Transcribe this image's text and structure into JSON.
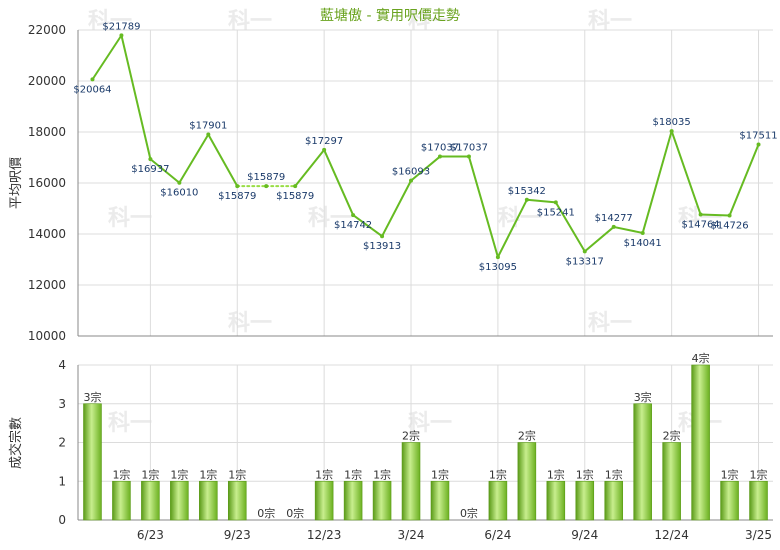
{
  "chart_data": [
    {
      "type": "line",
      "title": "藍塘傲 - 實用呎價走勢",
      "ylabel": "平均呎價",
      "ylim": [
        10000,
        22000
      ],
      "yticks": [
        10000,
        12000,
        14000,
        16000,
        18000,
        20000,
        22000
      ],
      "grid": true,
      "series": [
        {
          "values": [
            20064,
            21789,
            16937,
            16010,
            17901,
            15879,
            15879,
            15879,
            17297,
            14742,
            13913,
            16093,
            17037,
            17037,
            13095,
            15342,
            15241,
            13317,
            14277,
            14041,
            18035,
            14764,
            14726,
            17511
          ],
          "labels": [
            "$20064",
            "$21789",
            "$16937",
            "$16010",
            "$17901",
            "$15879",
            "$15879",
            "$15879",
            "$17297",
            "$14742",
            "$13913",
            "$16093",
            "$17037",
            "$17037",
            "$13095",
            "$15342",
            "$15241",
            "$13317",
            "$14277",
            "$14041",
            "$18035",
            "$14764",
            "$14726",
            "$17511"
          ],
          "estimated": [
            false,
            false,
            false,
            false,
            false,
            false,
            true,
            false,
            false,
            false,
            false,
            false,
            false,
            false,
            false,
            false,
            false,
            false,
            false,
            false,
            false,
            false,
            false,
            false
          ]
        }
      ],
      "colors": {
        "line": "#66bb22",
        "estimated_line": "#99dd44"
      }
    },
    {
      "type": "bar",
      "ylabel": "成交宗數",
      "ylim": [
        0,
        4
      ],
      "yticks": [
        0,
        1,
        2,
        3,
        4
      ],
      "grid": true,
      "values": [
        3,
        1,
        1,
        1,
        1,
        1,
        0,
        0,
        1,
        1,
        1,
        2,
        1,
        0,
        1,
        2,
        1,
        1,
        1,
        3,
        2,
        4,
        1,
        1
      ],
      "labels": [
        "3宗",
        "1宗",
        "1宗",
        "1宗",
        "1宗",
        "1宗",
        "0宗",
        "0宗",
        "1宗",
        "1宗",
        "1宗",
        "2宗",
        "1宗",
        "0宗",
        "1宗",
        "2宗",
        "1宗",
        "1宗",
        "1宗",
        "3宗",
        "2宗",
        "4宗",
        "1宗",
        "1宗"
      ],
      "x_ticks": [
        {
          "index": 2,
          "label": "6/23"
        },
        {
          "index": 5,
          "label": "9/23"
        },
        {
          "index": 8,
          "label": "12/23"
        },
        {
          "index": 11,
          "label": "3/24"
        },
        {
          "index": 14,
          "label": "6/24"
        },
        {
          "index": 17,
          "label": "9/24"
        },
        {
          "index": 20,
          "label": "12/24"
        },
        {
          "index": 23,
          "label": "3/25"
        }
      ],
      "colors": {
        "bar": "#7cc22e",
        "bar_light": "#c8ee8e",
        "bar_dark": "#5a9a18"
      }
    }
  ],
  "watermark": "科一"
}
